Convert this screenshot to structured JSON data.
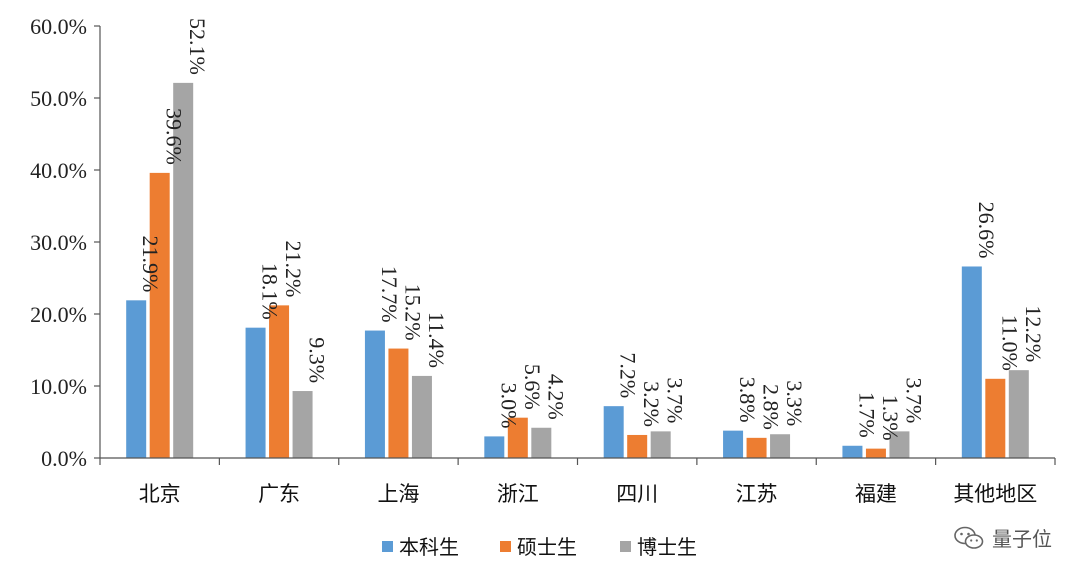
{
  "chart_data": {
    "type": "bar",
    "categories": [
      "北京",
      "广东",
      "上海",
      "浙江",
      "四川",
      "江苏",
      "福建",
      "其他地区"
    ],
    "series": [
      {
        "name": "本科生",
        "values": [
          21.9,
          18.1,
          17.7,
          3.0,
          7.2,
          3.8,
          1.7,
          26.6
        ],
        "labels": [
          "21.9%",
          "18.1%",
          "17.7%",
          "3.0%",
          "7.2%",
          "3.8%",
          "1.7%",
          "26.6%"
        ]
      },
      {
        "name": "硕士生",
        "values": [
          39.6,
          21.2,
          15.2,
          5.6,
          3.2,
          2.8,
          1.3,
          11.0
        ],
        "labels": [
          "39.6%",
          "21.2%",
          "15.2%",
          "5.6%",
          "3.2%",
          "2.8%",
          "1.3%",
          "11.0%"
        ]
      },
      {
        "name": "博士生",
        "values": [
          52.1,
          9.3,
          11.4,
          4.2,
          3.7,
          3.3,
          3.7,
          12.2
        ],
        "labels": [
          "52.1%",
          "9.3%",
          "11.4%",
          "4.2%",
          "3.7%",
          "3.3%",
          "3.7%",
          "12.2%"
        ]
      }
    ],
    "colors": [
      "#5b9bd5",
      "#ed7d31",
      "#a5a5a5"
    ],
    "ylim": [
      0,
      60
    ],
    "yticks": [
      "0.0%",
      "10.0%",
      "20.0%",
      "30.0%",
      "40.0%",
      "50.0%",
      "60.0%"
    ],
    "grid": false,
    "legend_position": "bottom"
  },
  "watermark": {
    "text": "量子位",
    "icon": "wechat-icon"
  }
}
